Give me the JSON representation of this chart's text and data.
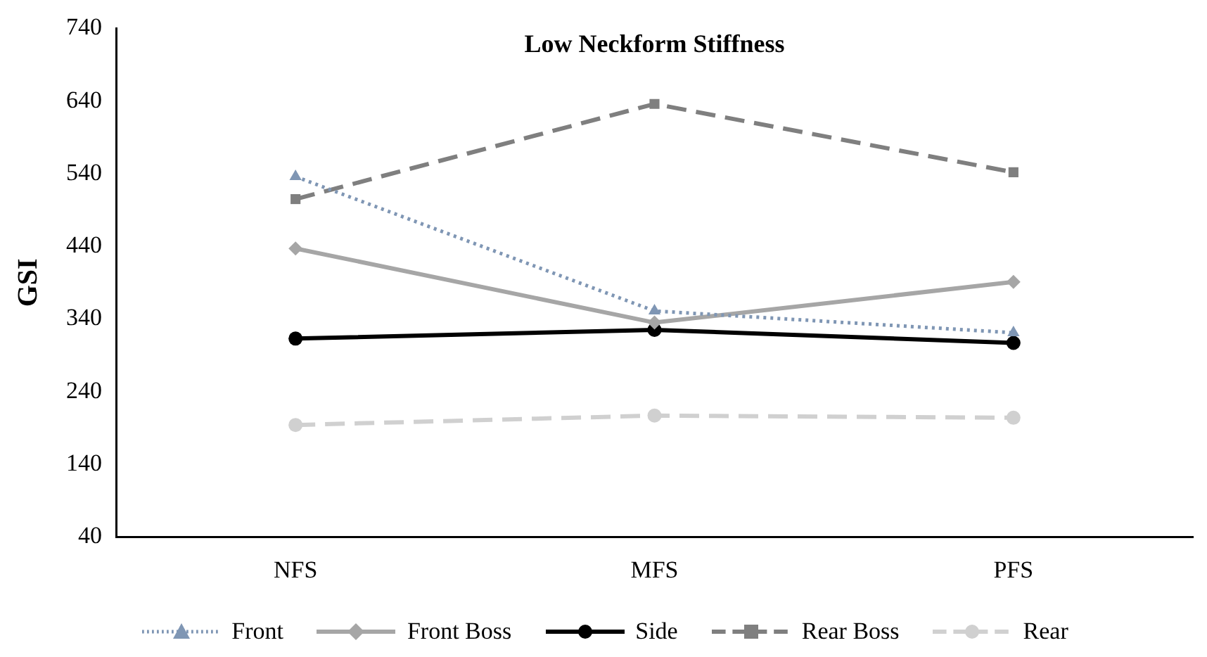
{
  "chart_data": {
    "type": "line",
    "title": "Low Neckform Stiffness",
    "ylabel": "GSI",
    "categories": [
      "NFS",
      "MFS",
      "PFS"
    ],
    "series": [
      {
        "name": "Front",
        "color": "#7f96b4",
        "values": [
          536,
          351,
          321
        ],
        "marker": "triangle",
        "line_style": "dotted"
      },
      {
        "name": "Front Boss",
        "color": "#a6a6a6",
        "values": [
          437,
          335,
          391
        ],
        "marker": "diamond",
        "line_style": "solid"
      },
      {
        "name": "Side",
        "color": "#000000",
        "values": [
          313,
          325,
          307
        ],
        "marker": "circle",
        "line_style": "solid"
      },
      {
        "name": "Rear Boss",
        "color": "#7f7f7f",
        "values": [
          505,
          636,
          542
        ],
        "marker": "square",
        "line_style": "dashed"
      },
      {
        "name": "Rear",
        "color": "#d0d0d0",
        "values": [
          194,
          207,
          204
        ],
        "marker": "circle",
        "line_style": "dashed"
      }
    ],
    "ylim": [
      40,
      740
    ],
    "yticks": [
      40,
      140,
      240,
      340,
      440,
      540,
      640,
      740
    ],
    "grid": false,
    "legend": "bottom"
  }
}
